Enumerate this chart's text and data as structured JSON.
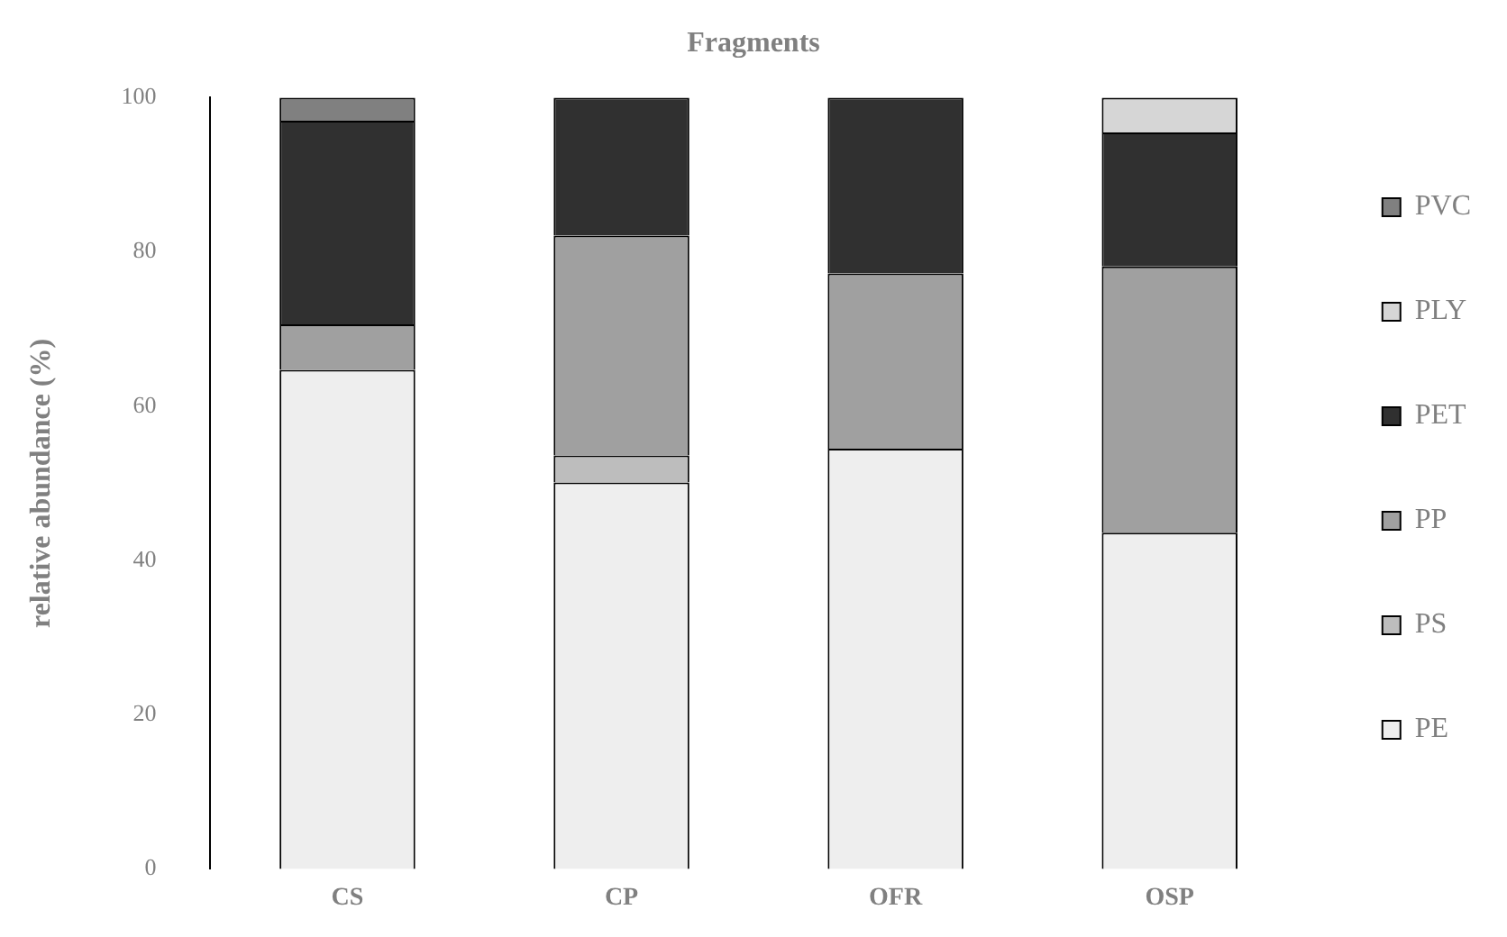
{
  "chart_data": {
    "type": "bar",
    "stacked": true,
    "title": "Fragments",
    "ylabel": "relative abundance (%)",
    "categories": [
      "CS",
      "CP",
      "OFR",
      "OSP"
    ],
    "series": [
      {
        "name": "PE",
        "color": "#eeeeee",
        "values": [
          64.7,
          50.1,
          54.5,
          43.6
        ]
      },
      {
        "name": "PS",
        "color": "#bdbdbd",
        "values": [
          null,
          3.5,
          null,
          null
        ]
      },
      {
        "name": "PP",
        "color": "#a0a0a0",
        "values": [
          5.9,
          28.5,
          22.7,
          34.5
        ]
      },
      {
        "name": "PET",
        "color": "#303030",
        "values": [
          26.4,
          17.9,
          22.8,
          17.4
        ]
      },
      {
        "name": "PLY",
        "color": "#d6d6d6",
        "values": [
          null,
          null,
          null,
          4.5
        ]
      },
      {
        "name": "PVC",
        "color": "#808080",
        "values": [
          3,
          null,
          null,
          null
        ]
      }
    ],
    "ylim": [
      0,
      100
    ],
    "yticks": [
      0,
      20,
      40,
      60,
      80,
      100
    ],
    "grid": false,
    "legend": "right"
  }
}
